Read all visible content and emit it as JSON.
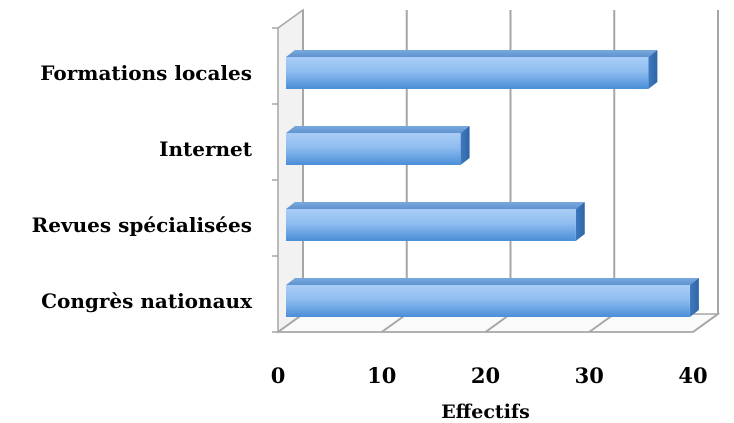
{
  "chart_data": {
    "type": "bar",
    "orientation": "horizontal",
    "style": "3d",
    "categories": [
      "Congrès nationaux",
      "Revues spécialisées",
      "Internet",
      "Formations locales"
    ],
    "values": [
      39.7,
      28.7,
      17.6,
      35.7
    ],
    "xlabel": "Effectifs",
    "xlim": [
      0,
      40
    ],
    "xticks": [
      0,
      10,
      20,
      30,
      40
    ],
    "grid": "vertical",
    "bar_color": "#5b9bd5"
  }
}
